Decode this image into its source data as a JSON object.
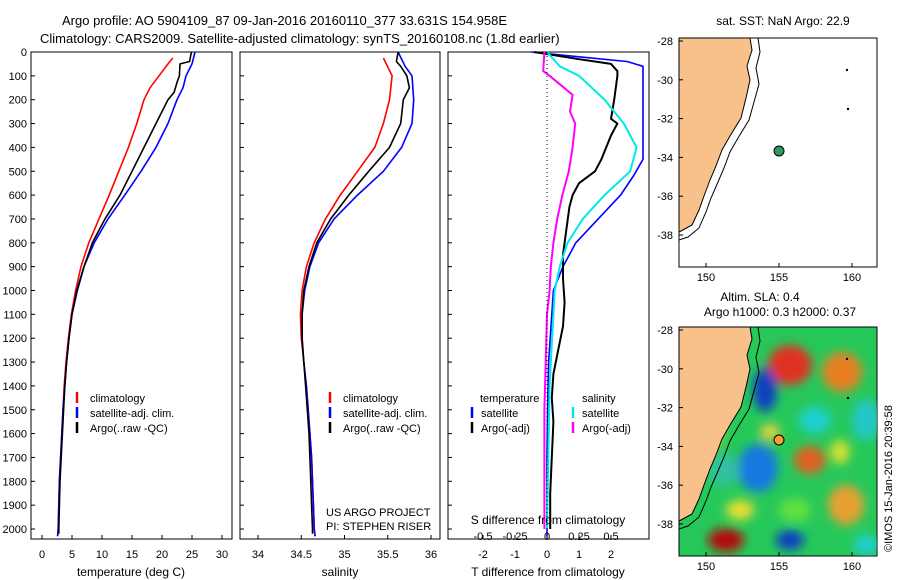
{
  "header": {
    "line1": "Argo profile: AO 5904109_87 09-Jan-2016 20160110_377 33.631S 154.958E",
    "line2": "Climatology: CARS2009. Satellite-adjusted climatology: synTS_20160108.nc (1.8d earlier)"
  },
  "colors": {
    "climatology": "#ff0000",
    "satellite": "#0000ff",
    "argo": "#000000",
    "sal_satellite": "#00e8e8",
    "sal_argo": "#ff00ff",
    "land": "#f8c08a",
    "argo_marker": "#2e9b5e",
    "argo_marker_sla": "#f5a030"
  },
  "depth_ticks": [
    "0",
    "100",
    "200",
    "300",
    "400",
    "500",
    "600",
    "700",
    "800",
    "900",
    "1000",
    "1100",
    "1200",
    "1300",
    "1400",
    "1500",
    "1600",
    "1700",
    "1800",
    "1900",
    "2000"
  ],
  "temp_panel": {
    "xlabel": "temperature (deg C)",
    "xticks": [
      "0",
      "5",
      "10",
      "15",
      "20",
      "25",
      "30"
    ],
    "legend": [
      "climatology",
      "satellite-adj. clim.",
      "Argo(..raw -QC)"
    ]
  },
  "sal_panel": {
    "xlabel": "salinity",
    "xticks": [
      "34",
      "34.5",
      "35",
      "35.5",
      "36"
    ],
    "legend": [
      "climatology",
      "satellite-adj. clim.",
      "Argo(..raw -QC)"
    ],
    "credit1": "US ARGO PROJECT",
    "credit2": "PI: STEPHEN RISER"
  },
  "diff_panel": {
    "xlabel": "T difference from climatology",
    "s_label": "S difference from climatology",
    "t_xticks": [
      "-2",
      "-1",
      "0",
      "1",
      "2"
    ],
    "s_xticks": [
      "-0.5",
      "-0.25",
      "0",
      "0.25",
      "0.5"
    ],
    "legend_temp_title": "temperature",
    "legend_temp": [
      "satellite",
      "Argo(-adj)"
    ],
    "legend_sal_title": "salinity",
    "legend_sal": [
      "satellite",
      "Argo(-adj)"
    ]
  },
  "map_sst": {
    "title": "sat. SST: NaN Argo: 22.9",
    "yticks": [
      "-28",
      "-30",
      "-32",
      "-34",
      "-36",
      "-38"
    ],
    "xticks": [
      "150",
      "155",
      "160"
    ]
  },
  "map_sla": {
    "title1": "Altim. SLA: 0.4",
    "title2": "Argo h1000: 0.3 h2000: 0.37",
    "yticks": [
      "-28",
      "-30",
      "-32",
      "-34",
      "-36",
      "-38"
    ],
    "xticks": [
      "150",
      "155",
      "160"
    ]
  },
  "side_note": "©IMOS 15-Jan-2016 20:39:58",
  "chart_data": [
    {
      "type": "line",
      "title": "",
      "xlabel": "temperature (deg C)",
      "ylabel": "",
      "xlim": [
        -2,
        31
      ],
      "ylim": [
        2050,
        0
      ],
      "grid": false,
      "legend": "lower-left",
      "series": [
        {
          "name": "climatology",
          "points": [
            [
              21.8,
              25
            ],
            [
              21.0,
              50
            ],
            [
              19.5,
              100
            ],
            [
              18.0,
              150
            ],
            [
              17.0,
              200
            ],
            [
              15.8,
              300
            ],
            [
              14.4,
              400
            ],
            [
              12.8,
              500
            ],
            [
              11.2,
              600
            ],
            [
              9.5,
              700
            ],
            [
              7.8,
              800
            ],
            [
              6.5,
              900
            ],
            [
              5.6,
              1000
            ],
            [
              4.9,
              1100
            ],
            [
              4.4,
              1200
            ],
            [
              4.0,
              1300
            ],
            [
              3.7,
              1400
            ],
            [
              3.5,
              1500
            ],
            [
              3.3,
              1600
            ],
            [
              3.1,
              1700
            ],
            [
              2.9,
              1800
            ],
            [
              2.8,
              1900
            ],
            [
              2.7,
              2000
            ],
            [
              2.6,
              2030
            ]
          ]
        },
        {
          "name": "satellite-adj. clim.",
          "points": [
            [
              25.5,
              0
            ],
            [
              25.0,
              50
            ],
            [
              24.0,
              100
            ],
            [
              23.5,
              150
            ],
            [
              22.5,
              200
            ],
            [
              21.0,
              300
            ],
            [
              19.0,
              400
            ],
            [
              16.5,
              500
            ],
            [
              13.8,
              600
            ],
            [
              11.0,
              700
            ],
            [
              8.7,
              800
            ],
            [
              7.0,
              900
            ],
            [
              5.9,
              1000
            ],
            [
              5.0,
              1100
            ],
            [
              4.5,
              1200
            ],
            [
              4.1,
              1300
            ],
            [
              3.8,
              1400
            ],
            [
              3.5,
              1500
            ],
            [
              3.3,
              1600
            ],
            [
              3.1,
              1700
            ],
            [
              2.9,
              1800
            ],
            [
              2.8,
              1900
            ],
            [
              2.7,
              2000
            ],
            [
              2.6,
              2030
            ]
          ]
        },
        {
          "name": "Argo(..raw -QC)",
          "points": [
            [
              24.9,
              0
            ],
            [
              24.6,
              40
            ],
            [
              23.0,
              50
            ],
            [
              22.9,
              100
            ],
            [
              22.6,
              120
            ],
            [
              22.0,
              170
            ],
            [
              21.0,
              200
            ],
            [
              19.0,
              300
            ],
            [
              17.0,
              400
            ],
            [
              15.0,
              500
            ],
            [
              13.0,
              600
            ],
            [
              10.5,
              700
            ],
            [
              8.4,
              800
            ],
            [
              7.0,
              900
            ],
            [
              5.8,
              1000
            ],
            [
              5.0,
              1100
            ],
            [
              4.5,
              1200
            ],
            [
              4.1,
              1300
            ],
            [
              3.8,
              1400
            ],
            [
              3.6,
              1500
            ],
            [
              3.4,
              1600
            ],
            [
              3.2,
              1700
            ],
            [
              3.0,
              1800
            ],
            [
              2.9,
              1900
            ],
            [
              2.8,
              2000
            ],
            [
              2.8,
              2020
            ]
          ]
        }
      ]
    },
    {
      "type": "line",
      "title": "",
      "xlabel": "salinity",
      "ylabel": "",
      "xlim": [
        33.8,
        36.1
      ],
      "ylim": [
        2050,
        0
      ],
      "grid": false,
      "legend": "lower-left",
      "series": [
        {
          "name": "climatology",
          "points": [
            [
              35.45,
              25
            ],
            [
              35.55,
              100
            ],
            [
              35.52,
              200
            ],
            [
              35.45,
              300
            ],
            [
              35.35,
              400
            ],
            [
              35.15,
              500
            ],
            [
              34.95,
              600
            ],
            [
              34.78,
              700
            ],
            [
              34.65,
              800
            ],
            [
              34.56,
              900
            ],
            [
              34.51,
              1000
            ],
            [
              34.49,
              1100
            ],
            [
              34.5,
              1200
            ],
            [
              34.53,
              1300
            ],
            [
              34.56,
              1400
            ],
            [
              34.58,
              1500
            ],
            [
              34.6,
              1600
            ],
            [
              34.62,
              1700
            ],
            [
              34.63,
              1800
            ],
            [
              34.64,
              1900
            ],
            [
              34.65,
              2000
            ],
            [
              34.66,
              2030
            ]
          ]
        },
        {
          "name": "satellite-adj. clim.",
          "points": [
            [
              35.62,
              0
            ],
            [
              35.7,
              60
            ],
            [
              35.78,
              100
            ],
            [
              35.8,
              200
            ],
            [
              35.78,
              300
            ],
            [
              35.66,
              400
            ],
            [
              35.45,
              500
            ],
            [
              35.15,
              600
            ],
            [
              34.88,
              700
            ],
            [
              34.7,
              800
            ],
            [
              34.6,
              900
            ],
            [
              34.54,
              1000
            ],
            [
              34.51,
              1100
            ],
            [
              34.51,
              1200
            ],
            [
              34.53,
              1300
            ],
            [
              34.56,
              1400
            ],
            [
              34.58,
              1500
            ],
            [
              34.6,
              1600
            ],
            [
              34.62,
              1700
            ],
            [
              34.63,
              1800
            ],
            [
              34.64,
              1900
            ],
            [
              34.65,
              2000
            ],
            [
              34.66,
              2030
            ]
          ]
        },
        {
          "name": "Argo(..raw -QC)",
          "points": [
            [
              35.62,
              0
            ],
            [
              35.6,
              40
            ],
            [
              35.65,
              60
            ],
            [
              35.72,
              100
            ],
            [
              35.75,
              150
            ],
            [
              35.68,
              200
            ],
            [
              35.65,
              300
            ],
            [
              35.52,
              400
            ],
            [
              35.28,
              500
            ],
            [
              35.05,
              600
            ],
            [
              34.84,
              700
            ],
            [
              34.68,
              800
            ],
            [
              34.59,
              900
            ],
            [
              34.53,
              1000
            ],
            [
              34.51,
              1100
            ],
            [
              34.51,
              1200
            ],
            [
              34.53,
              1300
            ],
            [
              34.55,
              1400
            ],
            [
              34.57,
              1500
            ],
            [
              34.59,
              1600
            ],
            [
              34.6,
              1700
            ],
            [
              34.61,
              1800
            ],
            [
              34.62,
              1900
            ],
            [
              34.63,
              2000
            ],
            [
              34.63,
              2020
            ]
          ]
        }
      ]
    },
    {
      "type": "line",
      "title": "",
      "xlabel": "T difference from climatology",
      "ylabel": "",
      "xlim": [
        -2.5,
        3.0
      ],
      "ylim": [
        2050,
        0
      ],
      "grid": false,
      "legend": "lower-left",
      "series": [
        {
          "name": "satellite",
          "points": [
            [
              -0.5,
              0
            ],
            [
              1.0,
              20
            ],
            [
              2.5,
              40
            ],
            [
              3.0,
              60
            ],
            [
              3.0,
              450
            ],
            [
              2.7,
              520
            ],
            [
              2.3,
              600
            ],
            [
              1.6,
              700
            ],
            [
              0.9,
              800
            ],
            [
              0.5,
              900
            ],
            [
              0.2,
              1000
            ],
            [
              0.15,
              1100
            ],
            [
              0.1,
              1200
            ],
            [
              0.05,
              1300
            ],
            [
              0.02,
              1500
            ],
            [
              0.0,
              1700
            ],
            [
              0.0,
              2030
            ]
          ]
        },
        {
          "name": "Argo(-adj)",
          "points": [
            [
              -0.4,
              0
            ],
            [
              1.0,
              30
            ],
            [
              2.0,
              50
            ],
            [
              2.2,
              80
            ],
            [
              2.2,
              100
            ],
            [
              2.1,
              200
            ],
            [
              2.0,
              280
            ],
            [
              2.2,
              300
            ],
            [
              2.0,
              350
            ],
            [
              1.7,
              450
            ],
            [
              1.5,
              500
            ],
            [
              1.0,
              550
            ],
            [
              0.8,
              600
            ],
            [
              0.7,
              650
            ],
            [
              0.6,
              750
            ],
            [
              0.5,
              850
            ],
            [
              0.5,
              950
            ],
            [
              0.55,
              1050
            ],
            [
              0.5,
              1150
            ],
            [
              0.35,
              1250
            ],
            [
              0.2,
              1350
            ],
            [
              0.15,
              1450
            ],
            [
              0.2,
              1550
            ],
            [
              0.15,
              1700
            ],
            [
              0.1,
              1850
            ],
            [
              0.1,
              2000
            ]
          ]
        },
        {
          "name": "salinity satellite",
          "points": [
            [
              0.0,
              0
            ],
            [
              0.1,
              60
            ],
            [
              0.25,
              100
            ],
            [
              0.45,
              200
            ],
            [
              0.6,
              300
            ],
            [
              0.7,
              400
            ],
            [
              0.65,
              500
            ],
            [
              0.45,
              600
            ],
            [
              0.28,
              700
            ],
            [
              0.16,
              800
            ],
            [
              0.1,
              900
            ],
            [
              0.06,
              1000
            ],
            [
              0.04,
              1200
            ],
            [
              0.02,
              1400
            ],
            [
              0.01,
              1700
            ],
            [
              0.0,
              2000
            ]
          ]
        },
        {
          "name": "salinity Argo(-adj)",
          "points": [
            [
              -0.02,
              0
            ],
            [
              -0.03,
              80
            ],
            [
              0.02,
              100
            ],
            [
              0.2,
              180
            ],
            [
              0.18,
              250
            ],
            [
              0.22,
              300
            ],
            [
              0.2,
              400
            ],
            [
              0.17,
              500
            ],
            [
              0.12,
              600
            ],
            [
              0.08,
              700
            ],
            [
              0.05,
              800
            ],
            [
              0.03,
              900
            ],
            [
              0.02,
              1000
            ],
            [
              0.0,
              1100
            ],
            [
              -0.01,
              1300
            ],
            [
              -0.02,
              1500
            ],
            [
              -0.02,
              1700
            ],
            [
              -0.02,
              2000
            ]
          ]
        }
      ]
    }
  ]
}
